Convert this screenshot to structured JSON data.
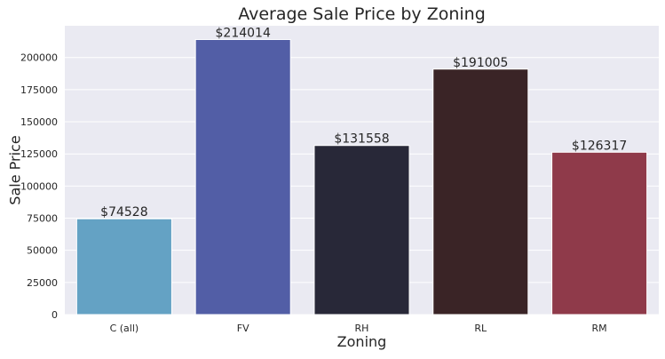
{
  "chart_data": {
    "type": "bar",
    "title": "Average Sale Price by Zoning",
    "xlabel": "Zoning",
    "ylabel": "Sale Price",
    "categories": [
      "C (all)",
      "FV",
      "RH",
      "RL",
      "RM"
    ],
    "values": [
      74528,
      214014,
      131558,
      191005,
      126317
    ],
    "data_labels": [
      "$74528",
      "$214014",
      "$131558",
      "$191005",
      "$126317"
    ],
    "ylim": [
      0,
      224715
    ],
    "yticks": [
      0,
      25000,
      50000,
      75000,
      100000,
      125000,
      150000,
      175000,
      200000
    ],
    "ytick_labels": [
      "0",
      "25000",
      "50000",
      "75000",
      "100000",
      "125000",
      "150000",
      "175000",
      "200000"
    ],
    "grid": true,
    "colors": [
      "#64a2c4",
      "#525ea6",
      "#282838",
      "#3a2426",
      "#8f3a4a"
    ],
    "background": "#eaeaf2"
  }
}
